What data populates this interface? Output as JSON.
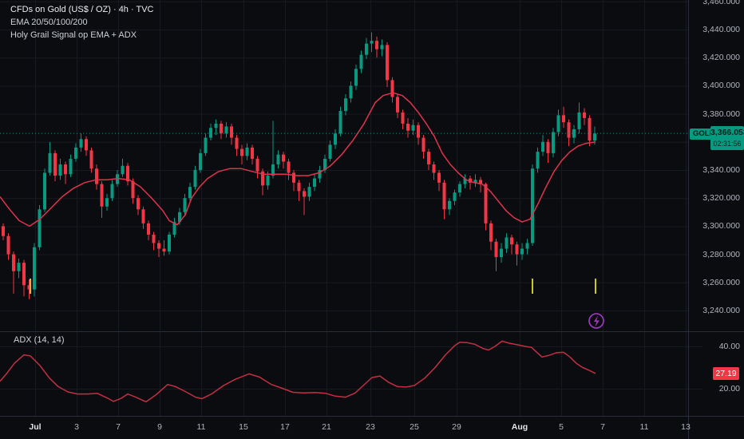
{
  "legend": {
    "line1": "CFDs on Gold (US$ / OZ) · 4h · TVC",
    "line2": "EMA 20/50/100/200",
    "line3": "Holy Grail Signal op EMA + ADX"
  },
  "price_scale": {
    "symbol_label": "GOLD",
    "last_price_label": "3,366.053",
    "countdown": "02:31:56"
  },
  "adx_pane": {
    "title": "ADX (14, 14)",
    "last_value_label": "27.19"
  },
  "time_axis": {
    "labels": [
      [
        "Jul",
        44,
        1
      ],
      [
        "3",
        96,
        0
      ],
      [
        "7",
        148,
        0
      ],
      [
        "9",
        200,
        0
      ],
      [
        "11",
        252,
        0
      ],
      [
        "15",
        305,
        0
      ],
      [
        "17",
        357,
        0
      ],
      [
        "21",
        409,
        0
      ],
      [
        "23",
        464,
        0
      ],
      [
        "25",
        519,
        0
      ],
      [
        "29",
        572,
        0
      ],
      [
        "Aug",
        651,
        1
      ],
      [
        "5",
        703,
        0
      ],
      [
        "7",
        755,
        0
      ],
      [
        "11",
        807,
        0
      ],
      [
        "13",
        859,
        0
      ]
    ]
  },
  "colors": {
    "background": "#0b0c10",
    "grid": "#171a21",
    "separator": "#2a2e39",
    "up": "#089981",
    "down": "#f23645",
    "ema": "#e0334d",
    "adx_line": "#c22f43",
    "signal_yellow": "#c9ca26",
    "signal_purple": "#a13cc9",
    "axis_text": "#b2b5be",
    "badge_teal": "#089981",
    "badge_text_dark": "#06201a",
    "adx_badge_bg": "#f23645"
  },
  "chart_data": {
    "type": "candlestick",
    "title": "CFDs on Gold (US$ / OZ) · 4h · TVC",
    "timeframe": "4h",
    "last_price": 3366.053,
    "price_grid_ticks": [
      3460,
      3440,
      3420,
      3400,
      3380,
      3360,
      3340,
      3320,
      3300,
      3280,
      3260,
      3240
    ],
    "price_label_ticks": [
      3460,
      3440,
      3420,
      3400,
      3380,
      3340,
      3320,
      3300,
      3280,
      3260,
      3240
    ],
    "time_labels": [
      "Jul",
      "3",
      "7",
      "9",
      "11",
      "15",
      "17",
      "21",
      "23",
      "25",
      "29",
      "Aug",
      "5",
      "7",
      "11",
      "13"
    ],
    "candles": [
      [
        3300,
        3302,
        3290,
        3293
      ],
      [
        3293,
        3295,
        3276,
        3280
      ],
      [
        3280,
        3282,
        3252,
        3268
      ],
      [
        3268,
        3277,
        3263,
        3274
      ],
      [
        3274,
        3276,
        3250,
        3258
      ],
      [
        3258,
        3262,
        3248,
        3255
      ],
      [
        3255,
        3288,
        3250,
        3285
      ],
      [
        3285,
        3315,
        3283,
        3312
      ],
      [
        3312,
        3341,
        3310,
        3338
      ],
      [
        3338,
        3360,
        3336,
        3352
      ],
      [
        3352,
        3354,
        3332,
        3336
      ],
      [
        3336,
        3348,
        3333,
        3344
      ],
      [
        3344,
        3346,
        3330,
        3337
      ],
      [
        3337,
        3351,
        3335,
        3348
      ],
      [
        3348,
        3359,
        3346,
        3356
      ],
      [
        3356,
        3366,
        3353,
        3362
      ],
      [
        3362,
        3364,
        3350,
        3354
      ],
      [
        3354,
        3356,
        3338,
        3341
      ],
      [
        3341,
        3344,
        3326,
        3330
      ],
      [
        3330,
        3332,
        3306,
        3314
      ],
      [
        3314,
        3323,
        3311,
        3320
      ],
      [
        3320,
        3333,
        3318,
        3330
      ],
      [
        3330,
        3340,
        3328,
        3337
      ],
      [
        3337,
        3348,
        3335,
        3343
      ],
      [
        3343,
        3345,
        3329,
        3332
      ],
      [
        3332,
        3334,
        3316,
        3320
      ],
      [
        3320,
        3322,
        3308,
        3312
      ],
      [
        3312,
        3314,
        3298,
        3302
      ],
      [
        3302,
        3304,
        3290,
        3294
      ],
      [
        3294,
        3296,
        3283,
        3288
      ],
      [
        3288,
        3290,
        3278,
        3284
      ],
      [
        3284,
        3290,
        3279,
        3282
      ],
      [
        3282,
        3296,
        3280,
        3294
      ],
      [
        3294,
        3306,
        3292,
        3303
      ],
      [
        3303,
        3313,
        3301,
        3310
      ],
      [
        3310,
        3323,
        3308,
        3320
      ],
      [
        3320,
        3331,
        3318,
        3328
      ],
      [
        3328,
        3343,
        3326,
        3340
      ],
      [
        3340,
        3355,
        3338,
        3352
      ],
      [
        3352,
        3366,
        3350,
        3363
      ],
      [
        3363,
        3373,
        3361,
        3370
      ],
      [
        3370,
        3376,
        3365,
        3373
      ],
      [
        3373,
        3375,
        3362,
        3366
      ],
      [
        3366,
        3374,
        3363,
        3371
      ],
      [
        3371,
        3373,
        3358,
        3363
      ],
      [
        3363,
        3365,
        3350,
        3355
      ],
      [
        3355,
        3358,
        3344,
        3350
      ],
      [
        3350,
        3359,
        3347,
        3356
      ],
      [
        3356,
        3358,
        3344,
        3348
      ],
      [
        3348,
        3350,
        3334,
        3339
      ],
      [
        3339,
        3341,
        3322,
        3329
      ],
      [
        3329,
        3339,
        3326,
        3336
      ],
      [
        3336,
        3375,
        3334,
        3344
      ],
      [
        3344,
        3354,
        3341,
        3351
      ],
      [
        3351,
        3353,
        3341,
        3346
      ],
      [
        3346,
        3348,
        3333,
        3338
      ],
      [
        3338,
        3340,
        3325,
        3331
      ],
      [
        3331,
        3333,
        3318,
        3325
      ],
      [
        3325,
        3327,
        3308,
        3321
      ],
      [
        3321,
        3331,
        3318,
        3328
      ],
      [
        3328,
        3337,
        3325,
        3334
      ],
      [
        3334,
        3343,
        3331,
        3340
      ],
      [
        3340,
        3351,
        3338,
        3348
      ],
      [
        3348,
        3361,
        3346,
        3358
      ],
      [
        3358,
        3369,
        3355,
        3366
      ],
      [
        3366,
        3385,
        3364,
        3382
      ],
      [
        3382,
        3394,
        3379,
        3391
      ],
      [
        3391,
        3403,
        3388,
        3400
      ],
      [
        3400,
        3415,
        3397,
        3412
      ],
      [
        3412,
        3425,
        3409,
        3422
      ],
      [
        3422,
        3434,
        3419,
        3430
      ],
      [
        3430,
        3438,
        3424,
        3432
      ],
      [
        3432,
        3435,
        3420,
        3426
      ],
      [
        3426,
        3433,
        3421,
        3429
      ],
      [
        3429,
        3431,
        3399,
        3404
      ],
      [
        3404,
        3406,
        3388,
        3392
      ],
      [
        3392,
        3394,
        3377,
        3381
      ],
      [
        3381,
        3383,
        3369,
        3373
      ],
      [
        3373,
        3377,
        3363,
        3368
      ],
      [
        3368,
        3376,
        3365,
        3372
      ],
      [
        3372,
        3374,
        3358,
        3363
      ],
      [
        3363,
        3365,
        3348,
        3353
      ],
      [
        3353,
        3355,
        3340,
        3344
      ],
      [
        3344,
        3346,
        3333,
        3338
      ],
      [
        3338,
        3340,
        3325,
        3331
      ],
      [
        3331,
        3333,
        3305,
        3312
      ],
      [
        3312,
        3320,
        3308,
        3318
      ],
      [
        3318,
        3326,
        3315,
        3324
      ],
      [
        3324,
        3332,
        3321,
        3330
      ],
      [
        3330,
        3337,
        3327,
        3334
      ],
      [
        3334,
        3336,
        3326,
        3331
      ],
      [
        3331,
        3337,
        3328,
        3333
      ],
      [
        3333,
        3335,
        3324,
        3330
      ],
      [
        3330,
        3331,
        3297,
        3302
      ],
      [
        3302,
        3304,
        3283,
        3289
      ],
      [
        3289,
        3291,
        3268,
        3278
      ],
      [
        3278,
        3288,
        3274,
        3284
      ],
      [
        3284,
        3295,
        3281,
        3292
      ],
      [
        3292,
        3294,
        3280,
        3287
      ],
      [
        3287,
        3289,
        3272,
        3280
      ],
      [
        3280,
        3288,
        3276,
        3284
      ],
      [
        3284,
        3291,
        3280,
        3288
      ],
      [
        3288,
        3344,
        3286,
        3341
      ],
      [
        3341,
        3356,
        3338,
        3353
      ],
      [
        3353,
        3365,
        3350,
        3360
      ],
      [
        3360,
        3362,
        3345,
        3352
      ],
      [
        3352,
        3370,
        3349,
        3367
      ],
      [
        3367,
        3383,
        3364,
        3379
      ],
      [
        3379,
        3385,
        3370,
        3374
      ],
      [
        3374,
        3376,
        3357,
        3363
      ],
      [
        3363,
        3372,
        3359,
        3369
      ],
      [
        3369,
        3388,
        3366,
        3381
      ],
      [
        3381,
        3384,
        3372,
        3377
      ],
      [
        3377,
        3379,
        3357,
        3361
      ],
      [
        3361,
        3371,
        3358,
        3366.05
      ]
    ],
    "ema_line": [
      [
        0,
        3321
      ],
      [
        12,
        3312
      ],
      [
        24,
        3304
      ],
      [
        37,
        3300
      ],
      [
        50,
        3305
      ],
      [
        64,
        3313
      ],
      [
        78,
        3321
      ],
      [
        92,
        3327
      ],
      [
        106,
        3331
      ],
      [
        120,
        3333
      ],
      [
        134,
        3333
      ],
      [
        148,
        3334
      ],
      [
        162,
        3333
      ],
      [
        176,
        3328
      ],
      [
        190,
        3320
      ],
      [
        204,
        3311
      ],
      [
        212,
        3304
      ],
      [
        222,
        3301
      ],
      [
        232,
        3308
      ],
      [
        240,
        3320
      ],
      [
        250,
        3328
      ],
      [
        260,
        3334
      ],
      [
        274,
        3339
      ],
      [
        288,
        3341
      ],
      [
        302,
        3341
      ],
      [
        316,
        3339
      ],
      [
        330,
        3337
      ],
      [
        344,
        3337
      ],
      [
        358,
        3337
      ],
      [
        372,
        3336
      ],
      [
        386,
        3336
      ],
      [
        400,
        3338
      ],
      [
        414,
        3343
      ],
      [
        428,
        3351
      ],
      [
        442,
        3361
      ],
      [
        456,
        3373
      ],
      [
        470,
        3388
      ],
      [
        480,
        3393
      ],
      [
        492,
        3395
      ],
      [
        504,
        3393
      ],
      [
        514,
        3388
      ],
      [
        524,
        3381
      ],
      [
        534,
        3373
      ],
      [
        544,
        3364
      ],
      [
        554,
        3352
      ],
      [
        564,
        3344
      ],
      [
        574,
        3338
      ],
      [
        584,
        3333
      ],
      [
        594,
        3331
      ],
      [
        604,
        3330
      ],
      [
        614,
        3325
      ],
      [
        624,
        3318
      ],
      [
        634,
        3311
      ],
      [
        644,
        3306
      ],
      [
        654,
        3303
      ],
      [
        664,
        3305
      ],
      [
        674,
        3316
      ],
      [
        684,
        3328
      ],
      [
        694,
        3339
      ],
      [
        704,
        3347
      ],
      [
        714,
        3353
      ],
      [
        724,
        3357
      ],
      [
        734,
        3359
      ],
      [
        746,
        3360
      ]
    ],
    "adx": {
      "title": "ADX (14, 14)",
      "axis_ticks": [
        40,
        20
      ],
      "last_value": 27.19,
      "points": [
        [
          0,
          23.5
        ],
        [
          8,
          27
        ],
        [
          18,
          32
        ],
        [
          30,
          36
        ],
        [
          38,
          35.5
        ],
        [
          50,
          31
        ],
        [
          62,
          25
        ],
        [
          73,
          21
        ],
        [
          85,
          18.5
        ],
        [
          97,
          17.5
        ],
        [
          110,
          17.5
        ],
        [
          122,
          17.8
        ],
        [
          135,
          15.5
        ],
        [
          142,
          14
        ],
        [
          152,
          15.5
        ],
        [
          160,
          17.5
        ],
        [
          170,
          16
        ],
        [
          183,
          13.8
        ],
        [
          195,
          17
        ],
        [
          210,
          22
        ],
        [
          220,
          21
        ],
        [
          233,
          18.5
        ],
        [
          245,
          16
        ],
        [
          253,
          15.3
        ],
        [
          265,
          17.5
        ],
        [
          280,
          21.5
        ],
        [
          295,
          24.5
        ],
        [
          312,
          27
        ],
        [
          325,
          25.5
        ],
        [
          340,
          22
        ],
        [
          355,
          20
        ],
        [
          367,
          18.3
        ],
        [
          380,
          18
        ],
        [
          395,
          18.2
        ],
        [
          408,
          17.8
        ],
        [
          420,
          16.5
        ],
        [
          433,
          16
        ],
        [
          445,
          18
        ],
        [
          455,
          21.5
        ],
        [
          466,
          25.3
        ],
        [
          476,
          26
        ],
        [
          487,
          23
        ],
        [
          498,
          21
        ],
        [
          509,
          20.8
        ],
        [
          519,
          21.5
        ],
        [
          532,
          25
        ],
        [
          545,
          30
        ],
        [
          558,
          36
        ],
        [
          570,
          40.5
        ],
        [
          576,
          42
        ],
        [
          585,
          41.8
        ],
        [
          595,
          41
        ],
        [
          605,
          39
        ],
        [
          612,
          38.3
        ],
        [
          620,
          40
        ],
        [
          629,
          42.5
        ],
        [
          638,
          41.5
        ],
        [
          648,
          40.8
        ],
        [
          658,
          40
        ],
        [
          666,
          39.5
        ],
        [
          673,
          37
        ],
        [
          679,
          35
        ],
        [
          688,
          35.8
        ],
        [
          697,
          37
        ],
        [
          706,
          37.2
        ],
        [
          714,
          35
        ],
        [
          722,
          32
        ],
        [
          730,
          30
        ],
        [
          738,
          28.7
        ],
        [
          746,
          27.19
        ]
      ]
    },
    "signal_marks_x": [
      38,
      667,
      746
    ]
  }
}
